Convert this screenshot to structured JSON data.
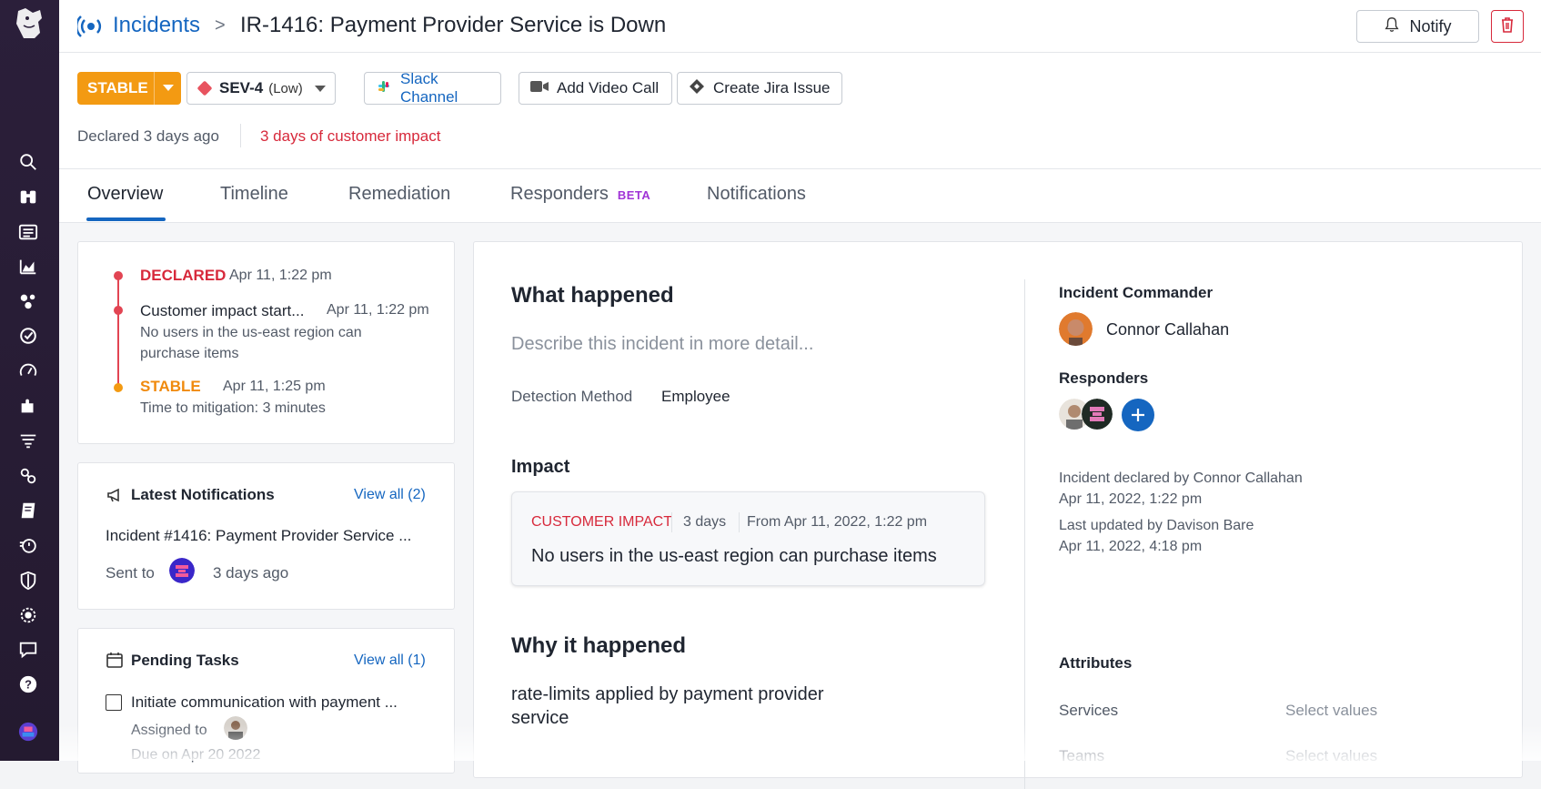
{
  "nav": {
    "items": [
      "search-icon",
      "binoculars-icon",
      "list-icon",
      "chart-icon",
      "clusters-icon",
      "incidents-icon",
      "gauge-icon",
      "puzzle-icon",
      "filter-icon",
      "link-icon",
      "notebook-icon",
      "timer-icon",
      "shield-icon",
      "radar-icon",
      "chat-icon",
      "help-icon",
      "user-avatar"
    ]
  },
  "breadcrumb": {
    "parent": "Incidents",
    "separator": ">",
    "title": "IR-1416:  Payment Provider Service is Down"
  },
  "header": {
    "notify_label": "Notify",
    "status_label": "STABLE",
    "severity_label": "SEV-4",
    "severity_sub": "(Low)",
    "slack_label": "Slack Channel",
    "video_label": "Add Video Call",
    "jira_label": "Create Jira Issue",
    "declared_text": "Declared 3 days ago",
    "impact_text": "3 days of customer impact"
  },
  "tabs": [
    {
      "label": "Overview"
    },
    {
      "label": "Timeline"
    },
    {
      "label": "Remediation"
    },
    {
      "label": "Responders",
      "badge": "BETA"
    },
    {
      "label": "Notifications"
    }
  ],
  "timeline": {
    "declared_label": "DECLARED",
    "declared_time": "Apr 11, 1:22 pm",
    "impact_label": "Customer impact start...",
    "impact_time": "Apr 11, 1:22 pm",
    "impact_desc_1": "No users in the us-east region can",
    "impact_desc_2": "purchase items",
    "stable_label": "STABLE",
    "stable_time": "Apr 11, 1:25 pm",
    "mitigation": "Time to mitigation: 3 minutes"
  },
  "notifications": {
    "title": "Latest Notifications",
    "view_all": "View all (2)",
    "item": "Incident #1416: Payment Provider Service ...",
    "sent_to": "Sent to",
    "sent_time": "3 days ago"
  },
  "tasks": {
    "title": "Pending Tasks",
    "view_all": "View all (1)",
    "item": "Initiate communication with payment ...",
    "assigned": "Assigned to",
    "due": "Due on Apr 20 2022"
  },
  "what_happened": {
    "title": "What happened",
    "placeholder": "Describe this incident in more detail...",
    "detection_label": "Detection Method",
    "detection_value": "Employee"
  },
  "impact": {
    "title": "Impact",
    "tag": "CUSTOMER IMPACT",
    "duration": "3 days",
    "from": "From Apr 11, 2022, 1:22 pm",
    "description": "No users in the us-east region can purchase items"
  },
  "why": {
    "title": "Why it happened",
    "line1": "rate-limits applied by payment provider",
    "line2": "service"
  },
  "side": {
    "commander_title": "Incident Commander",
    "commander_name": "Connor Callahan",
    "responders_title": "Responders",
    "declared_by": "Incident declared by Connor Callahan",
    "declared_at": "Apr 11, 2022, 1:22 pm",
    "updated_by": "Last updated by Davison Bare",
    "updated_at": "Apr 11, 2022, 4:18 pm",
    "attributes_title": "Attributes",
    "services_label": "Services",
    "services_value": "Select values",
    "teams_label": "Teams",
    "teams_value": "Select values"
  },
  "colors": {
    "accent": "#1566c0",
    "stable": "#f39a12",
    "danger": "#d7293b",
    "beta": "#a033d6"
  }
}
